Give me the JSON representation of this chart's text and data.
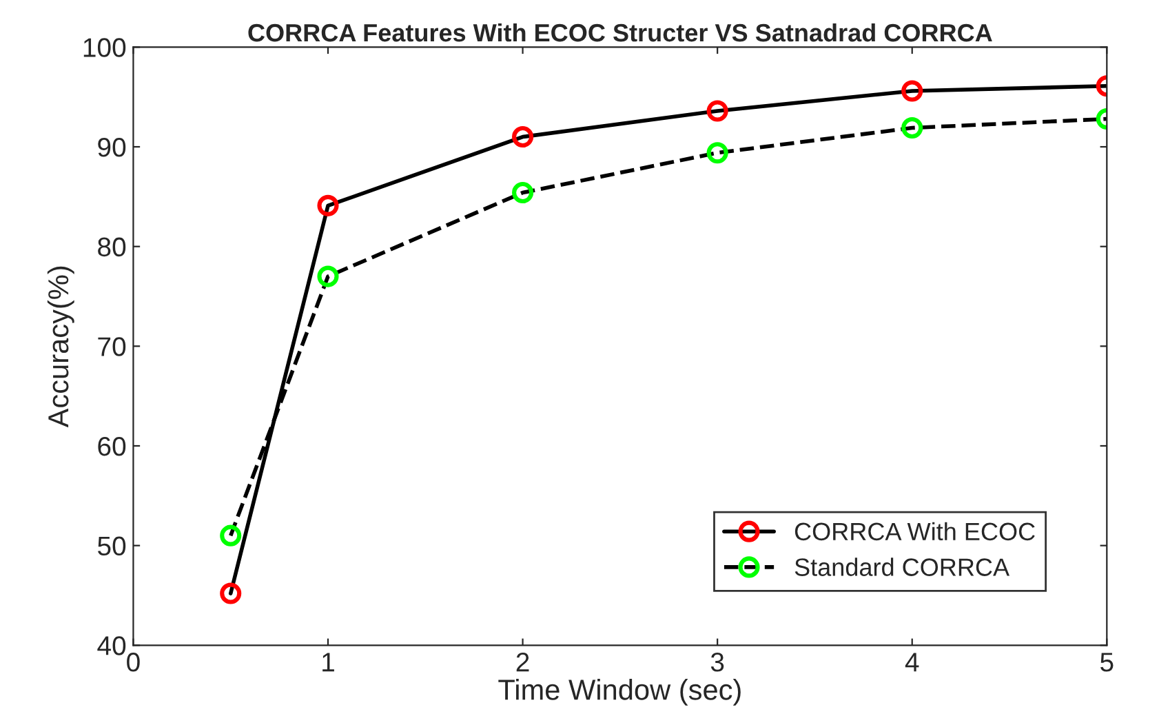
{
  "chart_data": {
    "type": "line",
    "title": "CORRCA Features With ECOC Structer VS Satnadrad CORRCA",
    "xlabel": "Time Window (sec)",
    "ylabel": "Accuracy(%)",
    "x": [
      0.5,
      1,
      2,
      3,
      4,
      5
    ],
    "series": [
      {
        "name": "CORRCA With ECOC",
        "color": "#ff0000",
        "line_style": "solid",
        "values": [
          45.2,
          84.1,
          91.0,
          93.6,
          95.6,
          96.1
        ]
      },
      {
        "name": "Standard CORRCA",
        "color": "#00ff00",
        "line_style": "dashed",
        "values": [
          51.0,
          77.0,
          85.4,
          89.4,
          91.9,
          92.8
        ]
      }
    ],
    "marker": "circle",
    "xlim": [
      0,
      5
    ],
    "ylim": [
      40,
      100
    ],
    "xticks": [
      0,
      1,
      2,
      3,
      4,
      5
    ],
    "yticks": [
      40,
      50,
      60,
      70,
      80,
      90,
      100
    ],
    "grid": false,
    "legend": "bottom right"
  }
}
